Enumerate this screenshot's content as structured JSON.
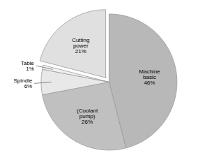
{
  "chart_data": {
    "type": "pie",
    "categories": [
      "Machine\nbasic",
      "(Coolant\npump)",
      "Spindle",
      "Table",
      "Cutting\npower"
    ],
    "values": [
      46,
      26,
      6,
      1,
      21
    ],
    "value_labels": [
      "46%",
      "26%",
      "6%",
      "1%",
      "21%"
    ],
    "colors": [
      "#b8b8b8",
      "#c0c0c0",
      "#e8e8e8",
      "#f0f0f0",
      "#e0e0e0"
    ],
    "data_labels": true
  }
}
